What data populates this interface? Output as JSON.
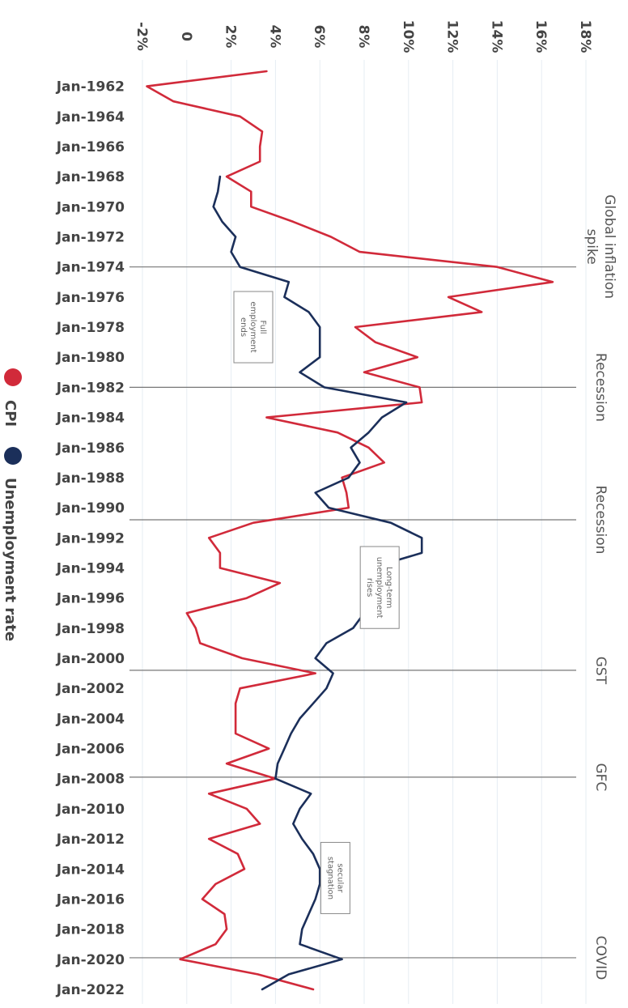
{
  "chart_data": {
    "type": "line",
    "title": "",
    "xlabel": "",
    "ylabel": "",
    "y_ticks": [
      "-2%",
      "0",
      "2%",
      "4%",
      "6%",
      "8%",
      "10%",
      "12%",
      "14%",
      "16%",
      "18%"
    ],
    "x_ticks": [
      "Jan-1962",
      "Jan-1964",
      "Jan-1966",
      "Jan-1968",
      "Jan-1970",
      "Jan-1972",
      "Jan-1974",
      "Jan-1976",
      "Jan-1978",
      "Jan-1980",
      "Jan-1982",
      "Jan-1984",
      "Jan-1986",
      "Jan-1988",
      "Jan-1990",
      "Jan-1992",
      "Jan-1994",
      "Jan-1996",
      "Jan-1998",
      "Jan-2000",
      "Jan-2002",
      "Jan-2004",
      "Jan-2006",
      "Jan-2008",
      "Jan-2010",
      "Jan-2012",
      "Jan-2014",
      "Jan-2016",
      "Jan-2018",
      "Jan-2020",
      "Jan-2022"
    ],
    "xlim": [
      1961,
      2022.5
    ],
    "ylim": [
      -2,
      18
    ],
    "grid": true,
    "legend": "left",
    "series": [
      {
        "name": "CPI",
        "color": "#d12a3a",
        "points": [
          [
            1961.0,
            3.6
          ],
          [
            1962.0,
            -1.8
          ],
          [
            1963.0,
            -0.6
          ],
          [
            1964.0,
            2.4
          ],
          [
            1965.0,
            3.4
          ],
          [
            1966.0,
            3.3
          ],
          [
            1967.0,
            3.3
          ],
          [
            1968.0,
            1.8
          ],
          [
            1969.0,
            2.9
          ],
          [
            1970.0,
            2.9
          ],
          [
            1971.0,
            4.8
          ],
          [
            1972.0,
            6.5
          ],
          [
            1973.0,
            7.8
          ],
          [
            1974.0,
            14.0
          ],
          [
            1975.0,
            16.5
          ],
          [
            1976.0,
            11.8
          ],
          [
            1977.0,
            13.3
          ],
          [
            1978.0,
            7.6
          ],
          [
            1979.0,
            8.5
          ],
          [
            1980.0,
            10.4
          ],
          [
            1981.0,
            8.0
          ],
          [
            1982.0,
            10.5
          ],
          [
            1983.0,
            10.6
          ],
          [
            1984.0,
            3.6
          ],
          [
            1985.0,
            6.8
          ],
          [
            1986.0,
            8.2
          ],
          [
            1987.0,
            8.9
          ],
          [
            1988.0,
            7.0
          ],
          [
            1989.0,
            7.2
          ],
          [
            1990.0,
            7.3
          ],
          [
            1991.0,
            3.0
          ],
          [
            1992.0,
            1.0
          ],
          [
            1993.0,
            1.5
          ],
          [
            1994.0,
            1.5
          ],
          [
            1995.0,
            4.2
          ],
          [
            1996.0,
            2.7
          ],
          [
            1997.0,
            0.0
          ],
          [
            1998.0,
            0.4
          ],
          [
            1999.0,
            0.6
          ],
          [
            2000.0,
            2.5
          ],
          [
            2001.0,
            5.8
          ],
          [
            2002.0,
            2.4
          ],
          [
            2003.0,
            2.2
          ],
          [
            2004.0,
            2.2
          ],
          [
            2005.0,
            2.2
          ],
          [
            2006.0,
            3.7
          ],
          [
            2007.0,
            1.8
          ],
          [
            2008.0,
            4.0
          ],
          [
            2009.0,
            1.0
          ],
          [
            2010.0,
            2.7
          ],
          [
            2011.0,
            3.3
          ],
          [
            2012.0,
            1.0
          ],
          [
            2013.0,
            2.3
          ],
          [
            2014.0,
            2.6
          ],
          [
            2015.0,
            1.3
          ],
          [
            2016.0,
            0.7
          ],
          [
            2017.0,
            1.7
          ],
          [
            2018.0,
            1.8
          ],
          [
            2019.0,
            1.3
          ],
          [
            2020.0,
            -0.3
          ],
          [
            2021.0,
            3.2
          ],
          [
            2022.0,
            5.7
          ]
        ]
      },
      {
        "name": "Unemployment rate",
        "color": "#1b2f5a",
        "points": [
          [
            1968.0,
            1.5
          ],
          [
            1969.0,
            1.4
          ],
          [
            1970.0,
            1.2
          ],
          [
            1971.0,
            1.6
          ],
          [
            1972.0,
            2.2
          ],
          [
            1973.0,
            2.0
          ],
          [
            1974.0,
            2.4
          ],
          [
            1975.0,
            4.6
          ],
          [
            1976.0,
            4.4
          ],
          [
            1977.0,
            5.5
          ],
          [
            1978.0,
            6.0
          ],
          [
            1979.0,
            6.0
          ],
          [
            1980.0,
            6.0
          ],
          [
            1981.0,
            5.1
          ],
          [
            1982.0,
            6.2
          ],
          [
            1983.0,
            9.9
          ],
          [
            1984.0,
            8.8
          ],
          [
            1985.0,
            8.2
          ],
          [
            1986.0,
            7.4
          ],
          [
            1987.0,
            7.8
          ],
          [
            1988.0,
            7.3
          ],
          [
            1989.0,
            5.8
          ],
          [
            1990.0,
            6.4
          ],
          [
            1991.0,
            9.2
          ],
          [
            1992.0,
            10.6
          ],
          [
            1993.0,
            10.6
          ],
          [
            1994.0,
            8.3
          ],
          [
            1995.0,
            8.1
          ],
          [
            1996.0,
            8.0
          ],
          [
            1997.0,
            8.0
          ],
          [
            1998.0,
            7.5
          ],
          [
            1999.0,
            6.3
          ],
          [
            2000.0,
            5.8
          ],
          [
            2001.0,
            6.6
          ],
          [
            2002.0,
            6.3
          ],
          [
            2003.0,
            5.7
          ],
          [
            2004.0,
            5.1
          ],
          [
            2005.0,
            4.7
          ],
          [
            2006.0,
            4.4
          ],
          [
            2007.0,
            4.1
          ],
          [
            2008.0,
            4.0
          ],
          [
            2009.0,
            5.6
          ],
          [
            2010.0,
            5.1
          ],
          [
            2011.0,
            4.8
          ],
          [
            2012.0,
            5.2
          ],
          [
            2013.0,
            5.7
          ],
          [
            2014.0,
            6.0
          ],
          [
            2015.0,
            6.0
          ],
          [
            2016.0,
            5.8
          ],
          [
            2017.0,
            5.5
          ],
          [
            2018.0,
            5.2
          ],
          [
            2019.0,
            5.1
          ],
          [
            2020.0,
            7.0
          ],
          [
            2021.0,
            4.6
          ],
          [
            2022.0,
            3.4
          ]
        ]
      }
    ],
    "events": [
      {
        "x": 1974.0,
        "label": "Global inflation spike"
      },
      {
        "x": 1982.0,
        "label": "Recession"
      },
      {
        "x": 1990.8,
        "label": "Recession"
      },
      {
        "x": 2000.8,
        "label": "GST"
      },
      {
        "x": 2007.9,
        "label": "GFC"
      },
      {
        "x": 2019.9,
        "label": "COVID"
      }
    ],
    "annotations": [
      {
        "text": "Full employment ends",
        "x": 1978,
        "y": 3.0
      },
      {
        "text": "Long-term unemployment rises",
        "x": 1995.3,
        "y": 8.7
      },
      {
        "text": "secular stagnation",
        "x": 2014.6,
        "y": 6.7
      }
    ]
  }
}
